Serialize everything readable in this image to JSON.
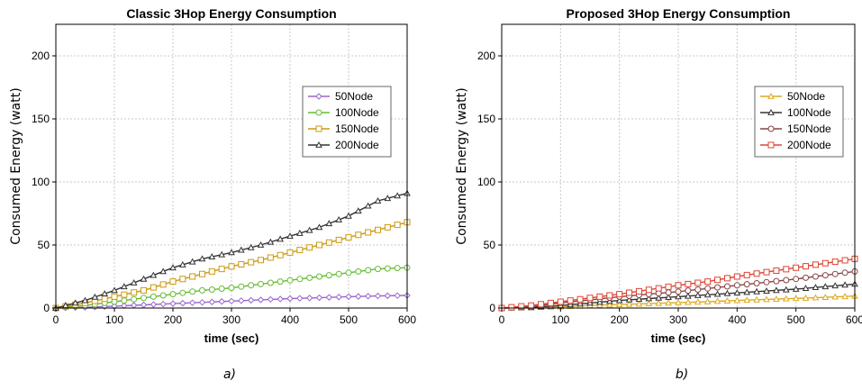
{
  "chart_data": [
    {
      "type": "line",
      "title": "Classic 3Hop Energy Consumption",
      "xlabel": "time (sec)",
      "ylabel": "Consumed Energy (watt)",
      "xlim": [
        0,
        600
      ],
      "ylim": [
        0,
        225
      ],
      "xticks": [
        0,
        100,
        200,
        300,
        400,
        500,
        600
      ],
      "yticks": [
        0,
        50,
        100,
        150,
        200
      ],
      "grid": true,
      "legend_position": "right",
      "caption": "a)",
      "series": [
        {
          "name": "50Node",
          "color": "#9966cc",
          "marker": "diamond",
          "x": [
            0,
            50,
            100,
            150,
            200,
            250,
            300,
            350,
            400,
            450,
            500,
            550,
            600
          ],
          "y": [
            0,
            0.5,
            1.5,
            2.5,
            3.5,
            4.5,
            5.5,
            6.5,
            7.5,
            8.2,
            9,
            9.6,
            10
          ]
        },
        {
          "name": "100Node",
          "color": "#66bb33",
          "marker": "circle",
          "x": [
            0,
            50,
            100,
            150,
            200,
            250,
            300,
            350,
            400,
            450,
            500,
            550,
            600
          ],
          "y": [
            0,
            2,
            5,
            8,
            11,
            14,
            16,
            19,
            22,
            25,
            28,
            31,
            32
          ]
        },
        {
          "name": "150Node",
          "color": "#cc9911",
          "marker": "square",
          "x": [
            0,
            50,
            100,
            150,
            200,
            250,
            300,
            350,
            400,
            450,
            500,
            550,
            600
          ],
          "y": [
            0,
            4,
            9,
            14,
            21,
            27,
            33,
            38,
            44,
            50,
            56,
            62,
            68
          ]
        },
        {
          "name": "200Node",
          "color": "#333333",
          "marker": "triangle",
          "x": [
            0,
            50,
            100,
            150,
            200,
            250,
            300,
            350,
            400,
            450,
            500,
            550,
            600
          ],
          "y": [
            0,
            6,
            14,
            23,
            32,
            39,
            44,
            50,
            57,
            64,
            73,
            85,
            91
          ]
        }
      ]
    },
    {
      "type": "line",
      "title": "Proposed 3Hop Energy Consumption",
      "xlabel": "time (sec)",
      "ylabel": "Consumed Energy (watt)",
      "xlim": [
        0,
        600
      ],
      "ylim": [
        0,
        225
      ],
      "xticks": [
        0,
        100,
        200,
        300,
        400,
        500,
        600
      ],
      "yticks": [
        0,
        50,
        100,
        150,
        200
      ],
      "grid": true,
      "legend_position": "right",
      "caption": "b)",
      "series": [
        {
          "name": "50Node",
          "color": "#ddaa22",
          "marker": "triangle",
          "x": [
            0,
            50,
            100,
            150,
            200,
            250,
            300,
            350,
            400,
            450,
            500,
            550,
            600
          ],
          "y": [
            0,
            0.5,
            1,
            2,
            2.8,
            3.5,
            4.3,
            5,
            6,
            6.8,
            7.6,
            8.5,
            9.5
          ]
        },
        {
          "name": "100Node",
          "color": "#333333",
          "marker": "triangle",
          "x": [
            0,
            50,
            100,
            150,
            200,
            250,
            300,
            350,
            400,
            450,
            500,
            550,
            600
          ],
          "y": [
            0,
            0.5,
            2,
            4,
            6,
            7.5,
            9,
            10.5,
            12,
            13.5,
            15,
            17,
            19
          ]
        },
        {
          "name": "150Node",
          "color": "#884444",
          "marker": "circle",
          "x": [
            0,
            50,
            100,
            150,
            200,
            250,
            300,
            350,
            400,
            450,
            500,
            550,
            600
          ],
          "y": [
            0,
            1,
            4,
            6.5,
            9,
            11,
            13,
            15.5,
            18,
            20.5,
            23,
            26,
            29
          ]
        },
        {
          "name": "200Node",
          "color": "#dd4433",
          "marker": "square",
          "x": [
            0,
            50,
            100,
            150,
            200,
            250,
            300,
            350,
            400,
            450,
            500,
            550,
            600
          ],
          "y": [
            0,
            2,
            5,
            8,
            11,
            14.5,
            18,
            21,
            25,
            28.5,
            32,
            35.5,
            39
          ]
        }
      ]
    }
  ]
}
